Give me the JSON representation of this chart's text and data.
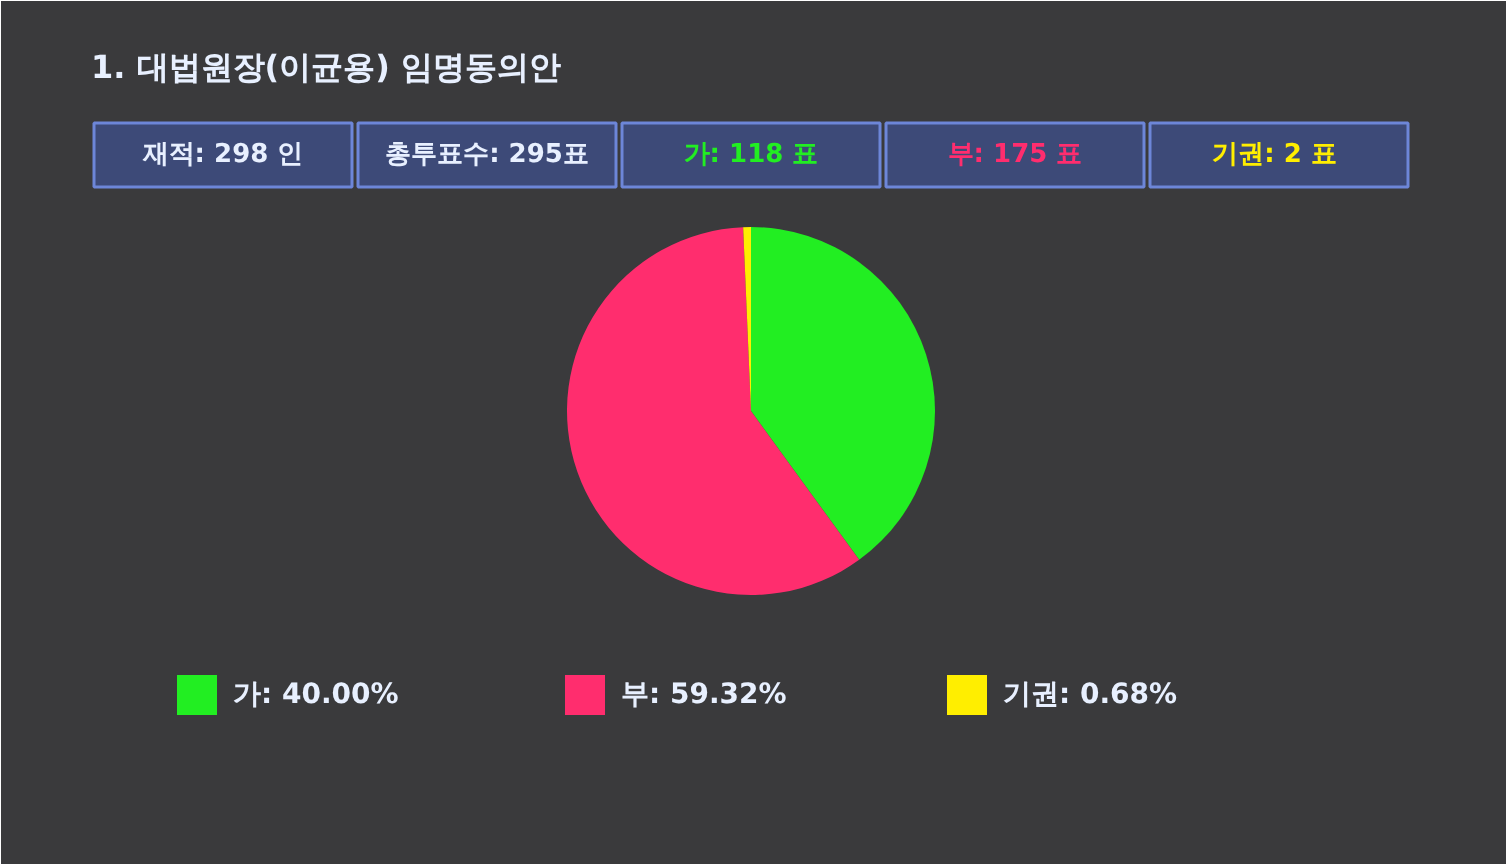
{
  "chart_data": {
    "type": "pie",
    "title": "1. 대법원장(이균용) 임명동의안",
    "annotations": [
      "재적: 298 인",
      "총투표수: 295표",
      "가: 118 표",
      "부: 175 표",
      "기권:  2 표"
    ],
    "categories": [
      "가",
      "부",
      "기권"
    ],
    "values": [
      40.0,
      59.32,
      0.68
    ],
    "colors": [
      "#22ee22",
      "#ff2d6e",
      "#ffee00"
    ],
    "value_labels": [
      "40.00%",
      "59.32%",
      "0.68%"
    ],
    "legend": "bottom"
  }
}
